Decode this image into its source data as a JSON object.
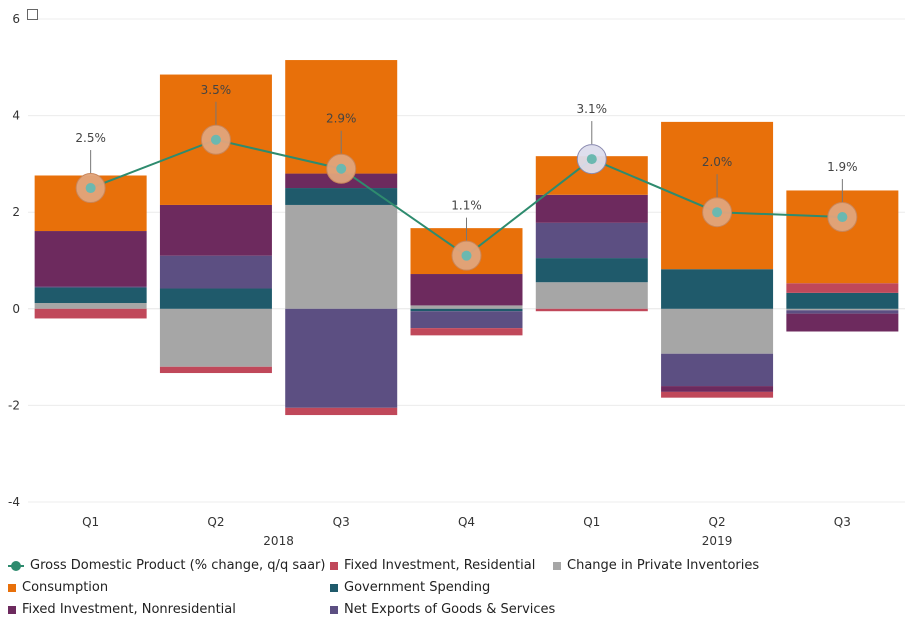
{
  "chart_data": {
    "type": "bar",
    "stacked": true,
    "categories": [
      "Q1",
      "Q2",
      "Q3",
      "Q4",
      "Q1",
      "Q2",
      "Q3"
    ],
    "years": [
      {
        "label": "2018",
        "start": 0,
        "end": 3
      },
      {
        "label": "2019",
        "start": 4,
        "end": 6
      }
    ],
    "ylim": [
      -4,
      6
    ],
    "yticks": [
      6,
      4,
      2,
      0,
      -2,
      -4
    ],
    "ytick_labels": [
      "6",
      "4",
      "2",
      "0",
      "-2",
      "-4"
    ],
    "grid": true,
    "legend_position": "bottom",
    "series": [
      {
        "name": "Change in Private Inventories",
        "color": "#a6a6a6",
        "values": [
          0.12,
          -1.2,
          2.15,
          0.07,
          0.55,
          -0.93,
          -0.03
        ]
      },
      {
        "name": "Government Spending",
        "color": "#1f5a6b",
        "values": [
          0.32,
          0.42,
          0.35,
          -0.05,
          0.5,
          0.82,
          0.33
        ]
      },
      {
        "name": "Net Exports of Goods & Services",
        "color": "#5c4f82",
        "values": [
          0.02,
          0.68,
          -2.05,
          -0.35,
          0.73,
          -0.67,
          -0.07
        ]
      },
      {
        "name": "Fixed Investment, Nonresidential",
        "color": "#6d2a5e",
        "values": [
          1.15,
          1.05,
          0.3,
          0.65,
          0.58,
          -0.12,
          -0.37
        ]
      },
      {
        "name": "Fixed Investment, Residential",
        "color": "#c0485a",
        "values": [
          -0.2,
          -0.13,
          -0.15,
          -0.15,
          -0.05,
          -0.12,
          0.2
        ]
      },
      {
        "name": "Consumption",
        "color": "#e8700a",
        "values": [
          1.15,
          2.7,
          2.35,
          0.95,
          0.8,
          3.05,
          1.92
        ]
      }
    ],
    "line": {
      "name": "Gross Domestic Product (% change, q/q saar)",
      "color": "#2e8b6e",
      "values": [
        2.5,
        3.5,
        2.9,
        1.1,
        3.1,
        2.0,
        1.9
      ],
      "labels": [
        "2.5%",
        "3.5%",
        "2.9%",
        "1.1%",
        "3.1%",
        "2.0%",
        "1.9%"
      ]
    }
  }
}
